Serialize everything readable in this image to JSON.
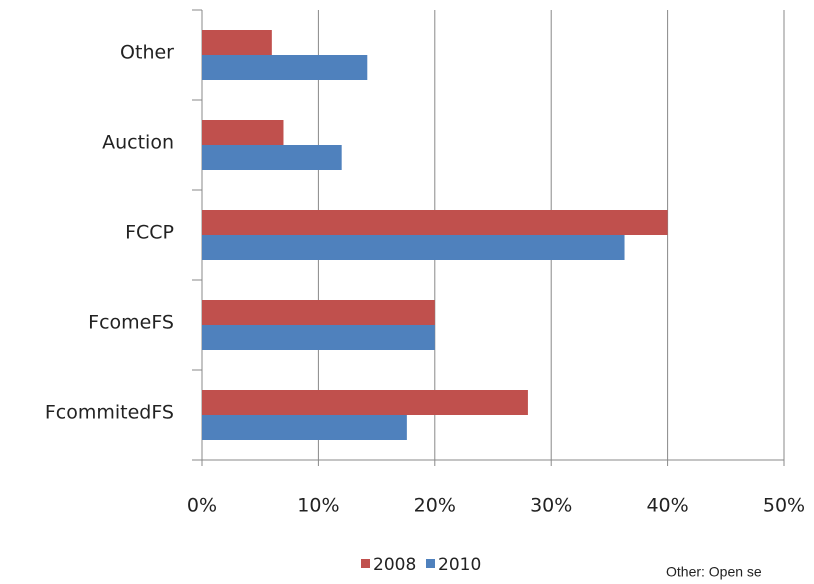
{
  "chart_data": {
    "type": "hbar",
    "categories": [
      "Other",
      "Auction",
      "FCCP",
      "FcomeFS",
      "FcommitedFS"
    ],
    "series": [
      {
        "name": "2008",
        "color": "#c0504d",
        "values": [
          6,
          7,
          40,
          20,
          28
        ]
      },
      {
        "name": "2010",
        "color": "#4f81bd",
        "values": [
          14.2,
          12,
          36.3,
          20,
          17.6
        ]
      }
    ],
    "xlim": [
      0,
      50
    ],
    "xticks": [
      {
        "value": 0,
        "label": "0%"
      },
      {
        "value": 10,
        "label": "10%"
      },
      {
        "value": 20,
        "label": "20%"
      },
      {
        "value": 30,
        "label": "30%"
      },
      {
        "value": 40,
        "label": "40%"
      },
      {
        "value": 50,
        "label": "50%"
      }
    ],
    "grid": true,
    "legend": "bottom",
    "annotation": "Other: Open se"
  }
}
